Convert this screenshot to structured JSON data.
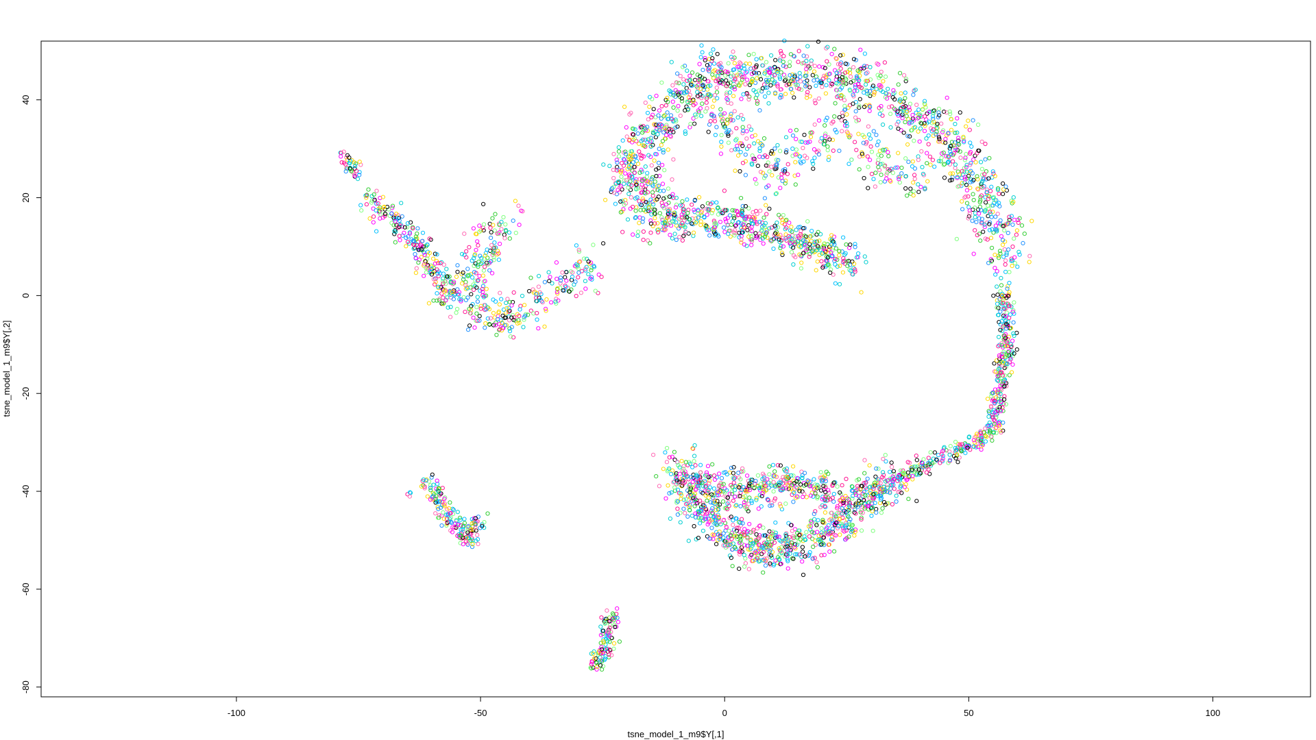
{
  "chart_data": {
    "type": "scatter",
    "title": "",
    "xlabel": "tsne_model_1_m9$Y[,1]",
    "ylabel": "tsne_model_1_m9$Y[,2]",
    "xlim": [
      -140,
      120
    ],
    "ylim": [
      -82,
      52
    ],
    "xticks": [
      -100,
      -50,
      0,
      50,
      100
    ],
    "yticks": [
      -80,
      -60,
      -40,
      -20,
      0,
      20,
      40
    ],
    "xtick_labels": [
      "-100",
      "-50",
      "0",
      "50",
      "100"
    ],
    "ytick_labels": [
      "-80",
      "-60",
      "-40",
      "-20",
      "0",
      "20",
      "40"
    ],
    "grid": false,
    "legend": "none",
    "marker": "open-circle",
    "palette": [
      "#000000",
      "#ff00ff",
      "#00bfff",
      "#32cd32",
      "#ff1493",
      "#00ced1",
      "#ffd700",
      "#1e90ff",
      "#7fff7f",
      "#ff69b4"
    ],
    "clusters": [
      {
        "name": "",
        "n": 1400,
        "path": [
          [
            -12,
            14
          ],
          [
            -20,
            22
          ],
          [
            -16,
            32
          ],
          [
            -5,
            44
          ],
          [
            10,
            45
          ],
          [
            25,
            45
          ],
          [
            38,
            38
          ],
          [
            48,
            28
          ],
          [
            55,
            18
          ],
          [
            58,
            8
          ]
        ],
        "spread": 4.5
      },
      {
        "name": "",
        "n": 500,
        "path": [
          [
            -12,
            16
          ],
          [
            0,
            16
          ],
          [
            10,
            13
          ],
          [
            20,
            10
          ],
          [
            26,
            5
          ]
        ],
        "spread": 3.5
      },
      {
        "name": "",
        "n": 350,
        "path": [
          [
            -5,
            40
          ],
          [
            5,
            30
          ],
          [
            10,
            24
          ],
          [
            15,
            30
          ],
          [
            25,
            35
          ],
          [
            30,
            28
          ],
          [
            40,
            22
          ]
        ],
        "spread": 4
      },
      {
        "name": "",
        "n": 450,
        "path": [
          [
            57,
            2
          ],
          [
            58,
            -10
          ],
          [
            56,
            -20
          ],
          [
            55,
            -28
          ],
          [
            45,
            -33
          ],
          [
            35,
            -37
          ]
        ],
        "spread": 1.5
      },
      {
        "name": "",
        "n": 900,
        "path": [
          [
            -10,
            -34
          ],
          [
            -6,
            -42
          ],
          [
            0,
            -48
          ],
          [
            8,
            -52
          ],
          [
            16,
            -51
          ],
          [
            24,
            -46
          ],
          [
            30,
            -40
          ],
          [
            36,
            -37
          ]
        ],
        "spread": 3.5
      },
      {
        "name": "",
        "n": 350,
        "path": [
          [
            -5,
            -38
          ],
          [
            5,
            -40
          ],
          [
            15,
            -38
          ],
          [
            22,
            -40
          ]
        ],
        "spread": 3
      },
      {
        "name": "",
        "n": 350,
        "path": [
          [
            -27,
            8
          ],
          [
            -30,
            4
          ],
          [
            -35,
            2
          ],
          [
            -40,
            -3
          ],
          [
            -46,
            -5
          ],
          [
            -50,
            -4
          ],
          [
            -52,
            4
          ],
          [
            -48,
            10
          ],
          [
            -45,
            16
          ]
        ],
        "spread": 3.5
      },
      {
        "name": "",
        "n": 250,
        "path": [
          [
            -73,
            20
          ],
          [
            -68,
            16
          ],
          [
            -64,
            12
          ],
          [
            -60,
            6
          ],
          [
            -55,
            0
          ],
          [
            -58,
            -2
          ]
        ],
        "spread": 2.2
      },
      {
        "name": "",
        "n": 40,
        "path": [
          [
            -79,
            29
          ],
          [
            -74,
            24
          ]
        ],
        "spread": 1.2
      },
      {
        "name": "",
        "n": 180,
        "path": [
          [
            -61,
            -37
          ],
          [
            -58,
            -42
          ],
          [
            -56,
            -46
          ],
          [
            -52,
            -50
          ],
          [
            -50,
            -46
          ]
        ],
        "spread": 1.8
      },
      {
        "name": "",
        "n": 4,
        "path": [
          [
            -64.5,
            -40
          ],
          [
            -64.5,
            -41.5
          ]
        ],
        "spread": 0.3
      },
      {
        "name": "",
        "n": 110,
        "path": [
          [
            -23,
            -65
          ],
          [
            -24,
            -70
          ],
          [
            -26,
            -76
          ]
        ],
        "spread": 1.5
      }
    ]
  }
}
